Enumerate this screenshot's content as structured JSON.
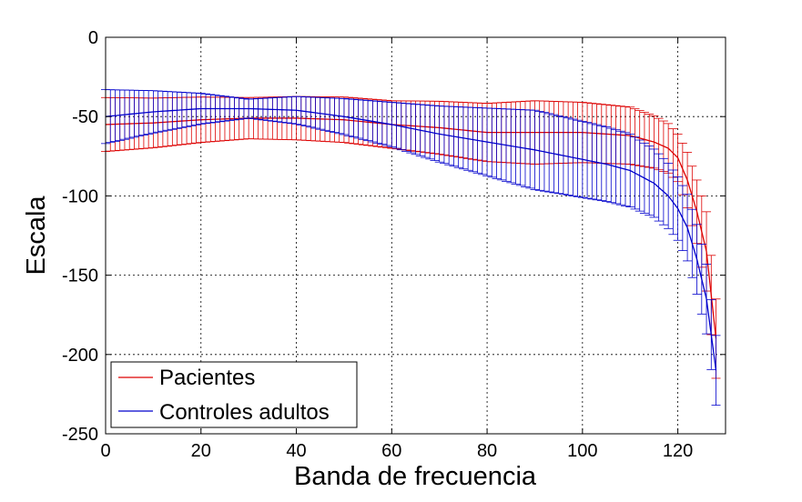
{
  "chart_data": {
    "type": "line",
    "title": "",
    "xlabel": "Banda de frecuencia",
    "ylabel": "Escala",
    "xlim": [
      0,
      130
    ],
    "ylim": [
      -250,
      0
    ],
    "xticks": [
      "0",
      "20",
      "40",
      "60",
      "80",
      "100",
      "120"
    ],
    "yticks": [
      "0",
      "-50",
      "-100",
      "-150",
      "-200",
      "-250"
    ],
    "grid": true,
    "legend_position": "bottom-left",
    "error_bars": true,
    "x_start": 0,
    "x_end": 128,
    "series": [
      {
        "name": "Pacientes",
        "color": "#dd0000",
        "mean": {
          "x": [
            0,
            10,
            20,
            30,
            40,
            50,
            60,
            70,
            80,
            90,
            100,
            105,
            110,
            115,
            118,
            120,
            122,
            124,
            126,
            128
          ],
          "y": [
            -55,
            -54,
            -52,
            -51,
            -51,
            -52,
            -55,
            -57,
            -60,
            -60,
            -60,
            -61,
            -62,
            -66,
            -70,
            -76,
            -90,
            -110,
            -135,
            -190
          ]
        },
        "error_halfwidth": {
          "x": [
            0,
            30,
            60,
            90,
            110,
            120,
            124,
            126,
            128
          ],
          "y": [
            17,
            13,
            15,
            20,
            18,
            15,
            20,
            25,
            25
          ]
        }
      },
      {
        "name": "Controles adultos",
        "color": "#0000cc",
        "mean": {
          "x": [
            0,
            10,
            20,
            30,
            40,
            50,
            60,
            70,
            80,
            90,
            100,
            105,
            110,
            115,
            118,
            120,
            122,
            124,
            126,
            128
          ],
          "y": [
            -50,
            -47,
            -45,
            -45,
            -46,
            -50,
            -55,
            -61,
            -66,
            -71,
            -77,
            -80,
            -84,
            -92,
            -100,
            -108,
            -120,
            -140,
            -165,
            -210
          ]
        },
        "error_halfwidth": {
          "x": [
            0,
            30,
            60,
            90,
            110,
            120,
            124,
            126,
            128
          ],
          "y": [
            17,
            6,
            14,
            25,
            23,
            20,
            22,
            22,
            22
          ]
        }
      }
    ]
  }
}
